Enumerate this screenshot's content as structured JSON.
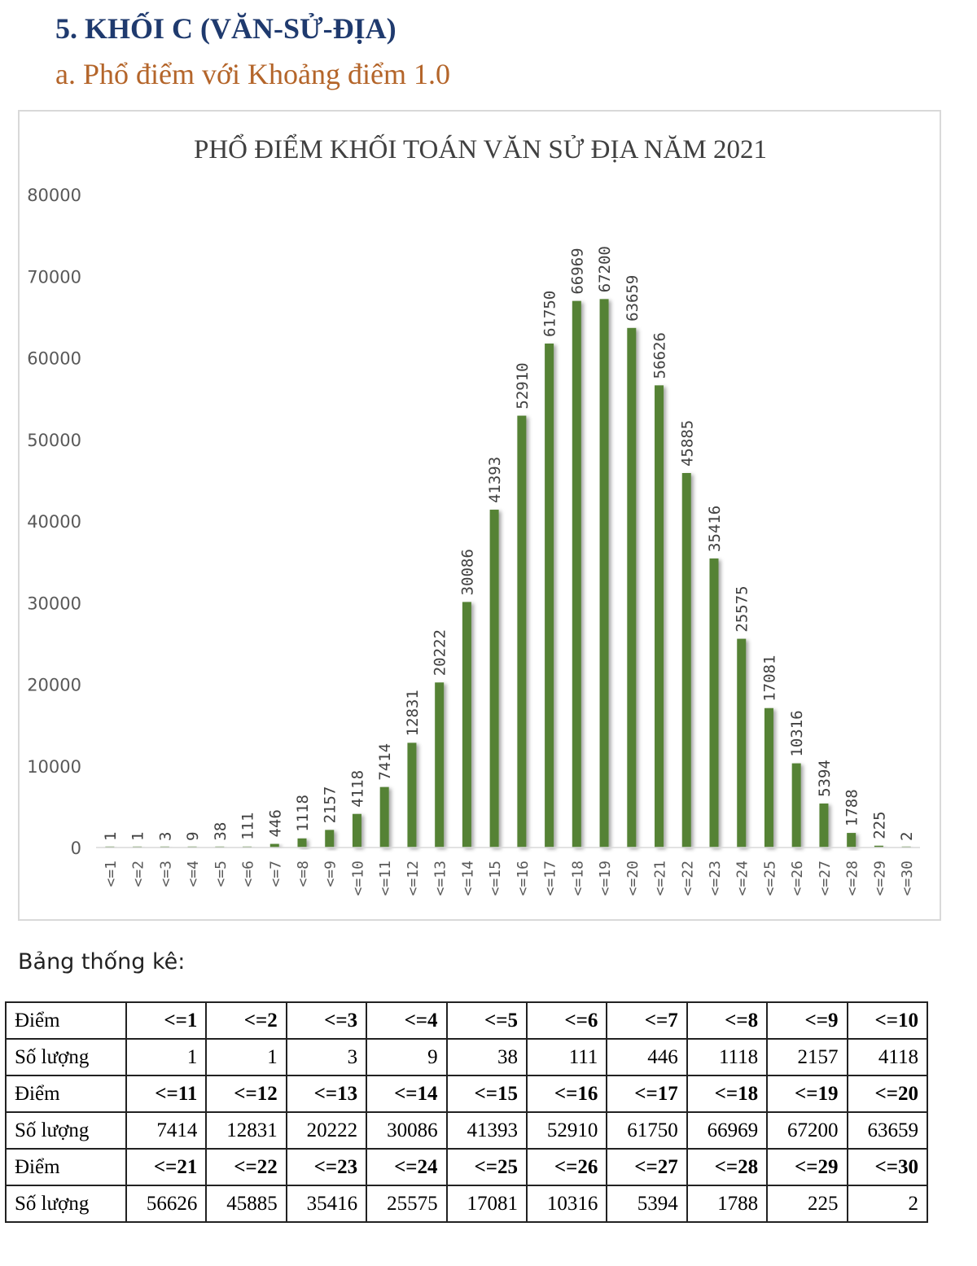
{
  "heading": "5.  KHỐI C (VĂN-SỬ-ĐỊA)",
  "subheading": "a.  Phổ điểm với Khoảng điểm 1.0",
  "stats_label": "Bảng thống kê:",
  "colors": {
    "bar": "#548235",
    "heading": "#1f3a6e",
    "subheading": "#b4652a"
  },
  "chart_data": {
    "type": "bar",
    "title": "PHỔ ĐIỂM KHỐI TOÁN VĂN SỬ ĐỊA NĂM 2021",
    "xlabel": "",
    "ylabel": "",
    "ylim": [
      0,
      80000
    ],
    "yticks": [
      "0",
      "10000",
      "20000",
      "30000",
      "40000",
      "50000",
      "60000",
      "70000",
      "80000"
    ],
    "grid": false,
    "categories": [
      "<=1",
      "<=2",
      "<=3",
      "<=4",
      "<=5",
      "<=6",
      "<=7",
      "<=8",
      "<=9",
      "<=10",
      "<=11",
      "<=12",
      "<=13",
      "<=14",
      "<=15",
      "<=16",
      "<=17",
      "<=18",
      "<=19",
      "<=20",
      "<=21",
      "<=22",
      "<=23",
      "<=24",
      "<=25",
      "<=26",
      "<=27",
      "<=28",
      "<=29",
      "<=30"
    ],
    "values": [
      1,
      1,
      3,
      9,
      38,
      111,
      446,
      1118,
      2157,
      4118,
      7414,
      12831,
      20222,
      30086,
      41393,
      52910,
      61750,
      66969,
      67200,
      63659,
      56626,
      45885,
      35416,
      25575,
      17081,
      10316,
      5394,
      1788,
      225,
      2
    ]
  },
  "table": {
    "score_header": "Điểm",
    "count_header": "Số lượng",
    "blocks": [
      {
        "scores": [
          "<=1",
          "<=2",
          "<=3",
          "<=4",
          "<=5",
          "<=6",
          "<=7",
          "<=8",
          "<=9",
          "<=10"
        ],
        "counts": [
          "1",
          "1",
          "3",
          "9",
          "38",
          "111",
          "446",
          "1118",
          "2157",
          "4118"
        ]
      },
      {
        "scores": [
          "<=11",
          "<=12",
          "<=13",
          "<=14",
          "<=15",
          "<=16",
          "<=17",
          "<=18",
          "<=19",
          "<=20"
        ],
        "counts": [
          "7414",
          "12831",
          "20222",
          "30086",
          "41393",
          "52910",
          "61750",
          "66969",
          "67200",
          "63659"
        ]
      },
      {
        "scores": [
          "<=21",
          "<=22",
          "<=23",
          "<=24",
          "<=25",
          "<=26",
          "<=27",
          "<=28",
          "<=29",
          "<=30"
        ],
        "counts": [
          "56626",
          "45885",
          "35416",
          "25575",
          "17081",
          "10316",
          "5394",
          "1788",
          "225",
          "2"
        ]
      }
    ]
  }
}
